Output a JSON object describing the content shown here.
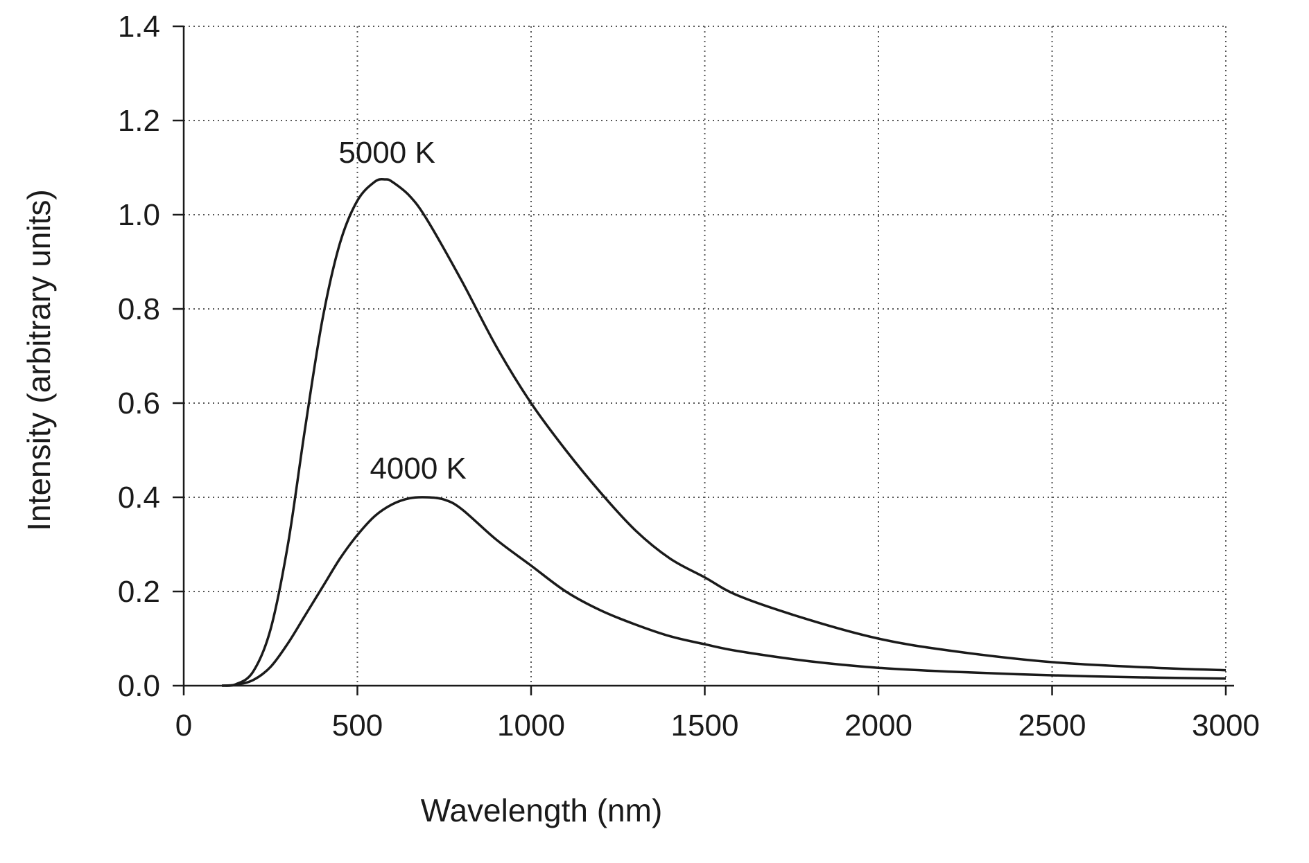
{
  "chart_data": {
    "type": "line",
    "title": "",
    "xlabel": "Wavelength (nm)",
    "ylabel": "Intensity (arbitrary units)",
    "xlim": [
      0,
      3000
    ],
    "ylim": [
      0,
      1.4
    ],
    "xticks": [
      0,
      500,
      1000,
      1500,
      2000,
      2500,
      3000
    ],
    "xtick_labels": [
      "0",
      "500",
      "1000",
      "1500",
      "2000",
      "2500",
      "3000"
    ],
    "yticks": [
      0,
      0.2,
      0.4,
      0.6,
      0.8,
      1.0,
      1.2,
      1.4
    ],
    "ytick_labels": [
      "0.0",
      "0.2",
      "0.4",
      "0.6",
      "0.8",
      "1.0",
      "1.2",
      "1.4"
    ],
    "grid": true,
    "grid_style": "dotted",
    "line_color": "#1a1a1a",
    "series": [
      {
        "label": "5000 K",
        "label_anchor": [
          585,
          1.11
        ],
        "x": [
          110,
          150,
          200,
          250,
          300,
          350,
          400,
          450,
          500,
          550,
          580,
          600,
          650,
          700,
          800,
          900,
          1000,
          1100,
          1200,
          1300,
          1400,
          1500,
          1600,
          1800,
          2000,
          2200,
          2500,
          2800,
          3000
        ],
        "y": [
          0.0,
          0.003,
          0.03,
          0.12,
          0.3,
          0.55,
          0.78,
          0.94,
          1.03,
          1.07,
          1.075,
          1.07,
          1.04,
          0.99,
          0.86,
          0.72,
          0.6,
          0.5,
          0.41,
          0.33,
          0.27,
          0.23,
          0.19,
          0.14,
          0.1,
          0.075,
          0.05,
          0.038,
          0.033
        ]
      },
      {
        "label": "4000 K",
        "label_anchor": [
          675,
          0.44
        ],
        "x": [
          110,
          150,
          200,
          250,
          300,
          350,
          400,
          450,
          500,
          550,
          600,
          650,
          700,
          750,
          800,
          900,
          1000,
          1100,
          1200,
          1300,
          1400,
          1500,
          1600,
          1800,
          2000,
          2200,
          2500,
          2800,
          3000
        ],
        "y": [
          0.0,
          0.002,
          0.012,
          0.04,
          0.09,
          0.15,
          0.21,
          0.27,
          0.32,
          0.36,
          0.385,
          0.398,
          0.4,
          0.395,
          0.375,
          0.31,
          0.255,
          0.2,
          0.16,
          0.13,
          0.105,
          0.088,
          0.073,
          0.052,
          0.038,
          0.03,
          0.022,
          0.017,
          0.015
        ]
      }
    ]
  }
}
